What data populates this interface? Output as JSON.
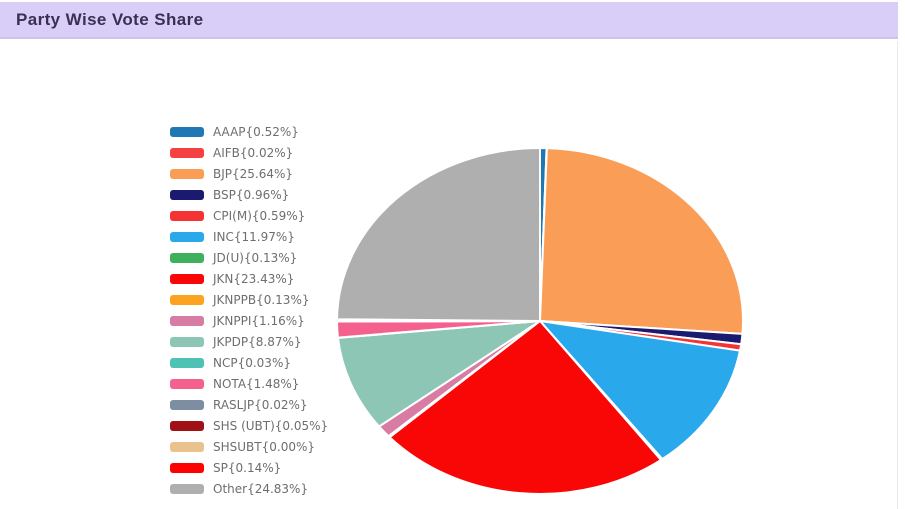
{
  "header": {
    "title": "Party Wise Vote Share"
  },
  "theme": {
    "header_bg": "#D8CEF7",
    "header_border": "#CCC2EA",
    "title_color": "#3B3054",
    "legend_text_color": "#6E6E6E",
    "slice_separator_color": "#FFFFFF",
    "page_bg": "#FFFFFF"
  },
  "chart_data": {
    "type": "pie",
    "title": "Party Wise Vote Share",
    "legend_position": "left",
    "start_angle": "top",
    "direction": "clockwise",
    "slices": [
      {
        "label": "AAAP",
        "value": 0.52,
        "text": "AAAP{0.52%}",
        "color": "#1F78B4"
      },
      {
        "label": "AIFB",
        "value": 0.02,
        "text": "AIFB{0.02%}",
        "color": "#F44040"
      },
      {
        "label": "BJP",
        "value": 25.64,
        "text": "BJP{25.64%}",
        "color": "#FA9D57"
      },
      {
        "label": "BSP",
        "value": 0.96,
        "text": "BSP{0.96%}",
        "color": "#1A1A70"
      },
      {
        "label": "CPI(M)",
        "value": 0.59,
        "text": "CPI(M){0.59%}",
        "color": "#F43434"
      },
      {
        "label": "INC",
        "value": 11.97,
        "text": "INC{11.97%}",
        "color": "#29A8EB"
      },
      {
        "label": "JD(U)",
        "value": 0.13,
        "text": "JD(U){0.13%}",
        "color": "#3FB05E"
      },
      {
        "label": "JKN",
        "value": 23.43,
        "text": "JKN{23.43%}",
        "color": "#F90606"
      },
      {
        "label": "JKNPPB",
        "value": 0.13,
        "text": "JKNPPB{0.13%}",
        "color": "#FCA41F"
      },
      {
        "label": "JKNPPI",
        "value": 1.16,
        "text": "JKNPPI{1.16%}",
        "color": "#D97CA4"
      },
      {
        "label": "JKPDP",
        "value": 8.87,
        "text": "JKPDP{8.87%}",
        "color": "#8EC6B6"
      },
      {
        "label": "NCP",
        "value": 0.03,
        "text": "NCP{0.03%}",
        "color": "#4EC2B4"
      },
      {
        "label": "NOTA",
        "value": 1.48,
        "text": "NOTA{1.48%}",
        "color": "#F4618F"
      },
      {
        "label": "RASLJP",
        "value": 0.02,
        "text": "RASLJP{0.02%}",
        "color": "#7D8EA3"
      },
      {
        "label": "SHS (UBT)",
        "value": 0.05,
        "text": "SHS (UBT){0.05%}",
        "color": "#A01015"
      },
      {
        "label": "SHSUBT",
        "value": 0.0,
        "text": "SHSUBT{0.00%}",
        "color": "#E9C28E"
      },
      {
        "label": "SP",
        "value": 0.14,
        "text": "SP{0.14%}",
        "color": "#FF0000"
      },
      {
        "label": "Other",
        "value": 24.83,
        "text": "Other{24.83%}",
        "color": "#AFAFAF"
      }
    ]
  }
}
